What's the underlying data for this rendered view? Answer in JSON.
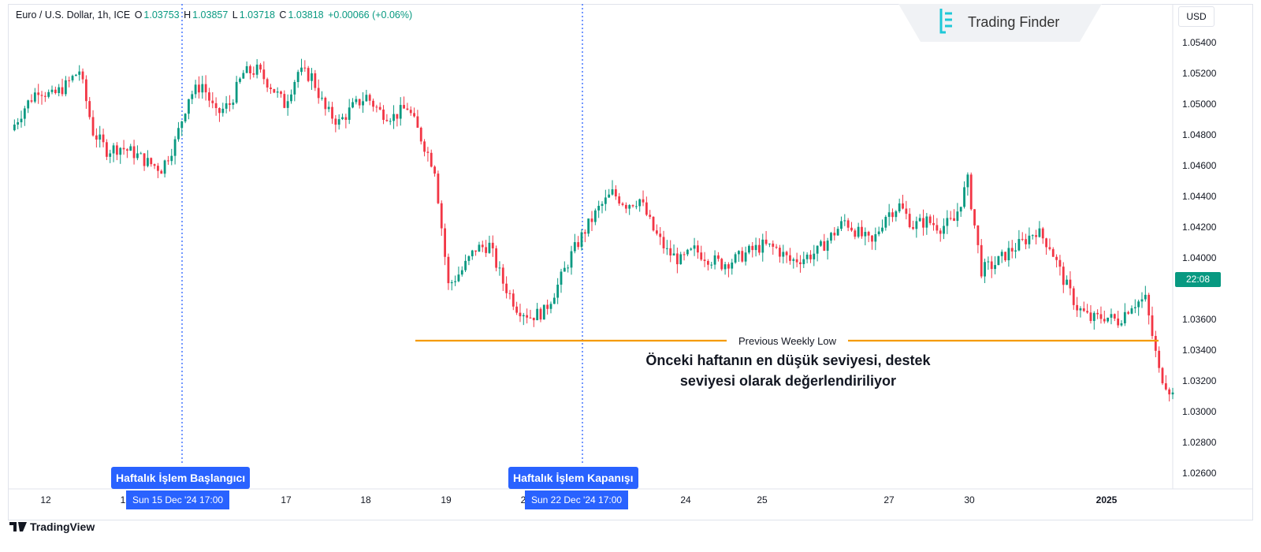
{
  "header": {
    "symbol": "Euro / U.S. Dollar, 1h, ICE",
    "open_label": "O",
    "open": "1.03753",
    "high_label": "H",
    "high": "1.03857",
    "low_label": "L",
    "low": "1.03718",
    "close_label": "C",
    "close": "1.03818",
    "change": "+0.00066 (+0.06%)"
  },
  "logo": {
    "name": "Trading Finder"
  },
  "currency": "USD",
  "price_tag": "22:08",
  "annotations": {
    "week_start": "Haftalık İşlem Başlangıcı",
    "week_close": "Haftalık İşlem Kapanışı",
    "start_time": "Sun 15 Dec '24   17:00",
    "close_time": "Sun 22 Dec '24   17:00",
    "level_label": "Previous Weekly Low",
    "description_line1": "Önceki haftanın en düşük seviyesi, destek",
    "description_line2": "seviyesi olarak değerlendiriliyor"
  },
  "brand": "TradingView",
  "colors": {
    "up": "#089981",
    "down": "#f23645",
    "level": "#f59b00",
    "marker": "#2962ff"
  },
  "chart_data": {
    "type": "line",
    "y_ticks": [
      1.054,
      1.052,
      1.05,
      1.048,
      1.046,
      1.044,
      1.042,
      1.04,
      1.036,
      1.034,
      1.032,
      1.03,
      1.028,
      1.026
    ],
    "y_tick_labels": [
      "1.05400",
      "1.05200",
      "1.05000",
      "1.04800",
      "1.04600",
      "1.04400",
      "1.04200",
      "1.04000",
      "1.03600",
      "1.03400",
      "1.03200",
      "1.03000",
      "1.02800",
      "1.02600"
    ],
    "x_tick_labels": [
      "12",
      "1",
      "17",
      "18",
      "19",
      "2",
      "24",
      "25",
      "27",
      "30",
      "2025"
    ],
    "series": [
      {
        "values": [
          1.0483,
          1.0498,
          1.051,
          1.0505,
          1.0512,
          1.0522,
          1.0482,
          1.047,
          1.0472,
          1.0468,
          1.0462,
          1.0458,
          1.0475,
          1.0505,
          1.0513,
          1.0493,
          1.05,
          1.052,
          1.0522,
          1.0512,
          1.05,
          1.0521,
          1.0518,
          1.0496,
          1.0488,
          1.0498,
          1.0505,
          1.0495,
          1.0492,
          1.0498,
          1.0478,
          1.0458,
          1.0382,
          1.0392,
          1.0406,
          1.0408,
          1.0384,
          1.0368,
          1.0362,
          1.0365,
          1.0382,
          1.0402,
          1.0418,
          1.0432,
          1.0442,
          1.0435,
          1.0438,
          1.0418,
          1.0404,
          1.0398,
          1.0405,
          1.04,
          1.0396,
          1.0399,
          1.0404,
          1.0408,
          1.0406,
          1.0398,
          1.04,
          1.0404,
          1.0414,
          1.0424,
          1.0416,
          1.0409,
          1.0428,
          1.0434,
          1.0421,
          1.0424,
          1.042,
          1.0424,
          1.045,
          1.0392,
          1.0396,
          1.0404,
          1.041,
          1.0418,
          1.0408,
          1.0386,
          1.0368,
          1.036,
          1.0362,
          1.0359,
          1.037,
          1.0373,
          1.0326,
          1.0311
        ]
      }
    ],
    "reference_line": {
      "label": "Previous Weekly Low",
      "y": 1.0341
    },
    "weekly_markers": [
      "Sun 15 Dec '24 17:00",
      "Sun 22 Dec '24 17:00"
    ]
  }
}
